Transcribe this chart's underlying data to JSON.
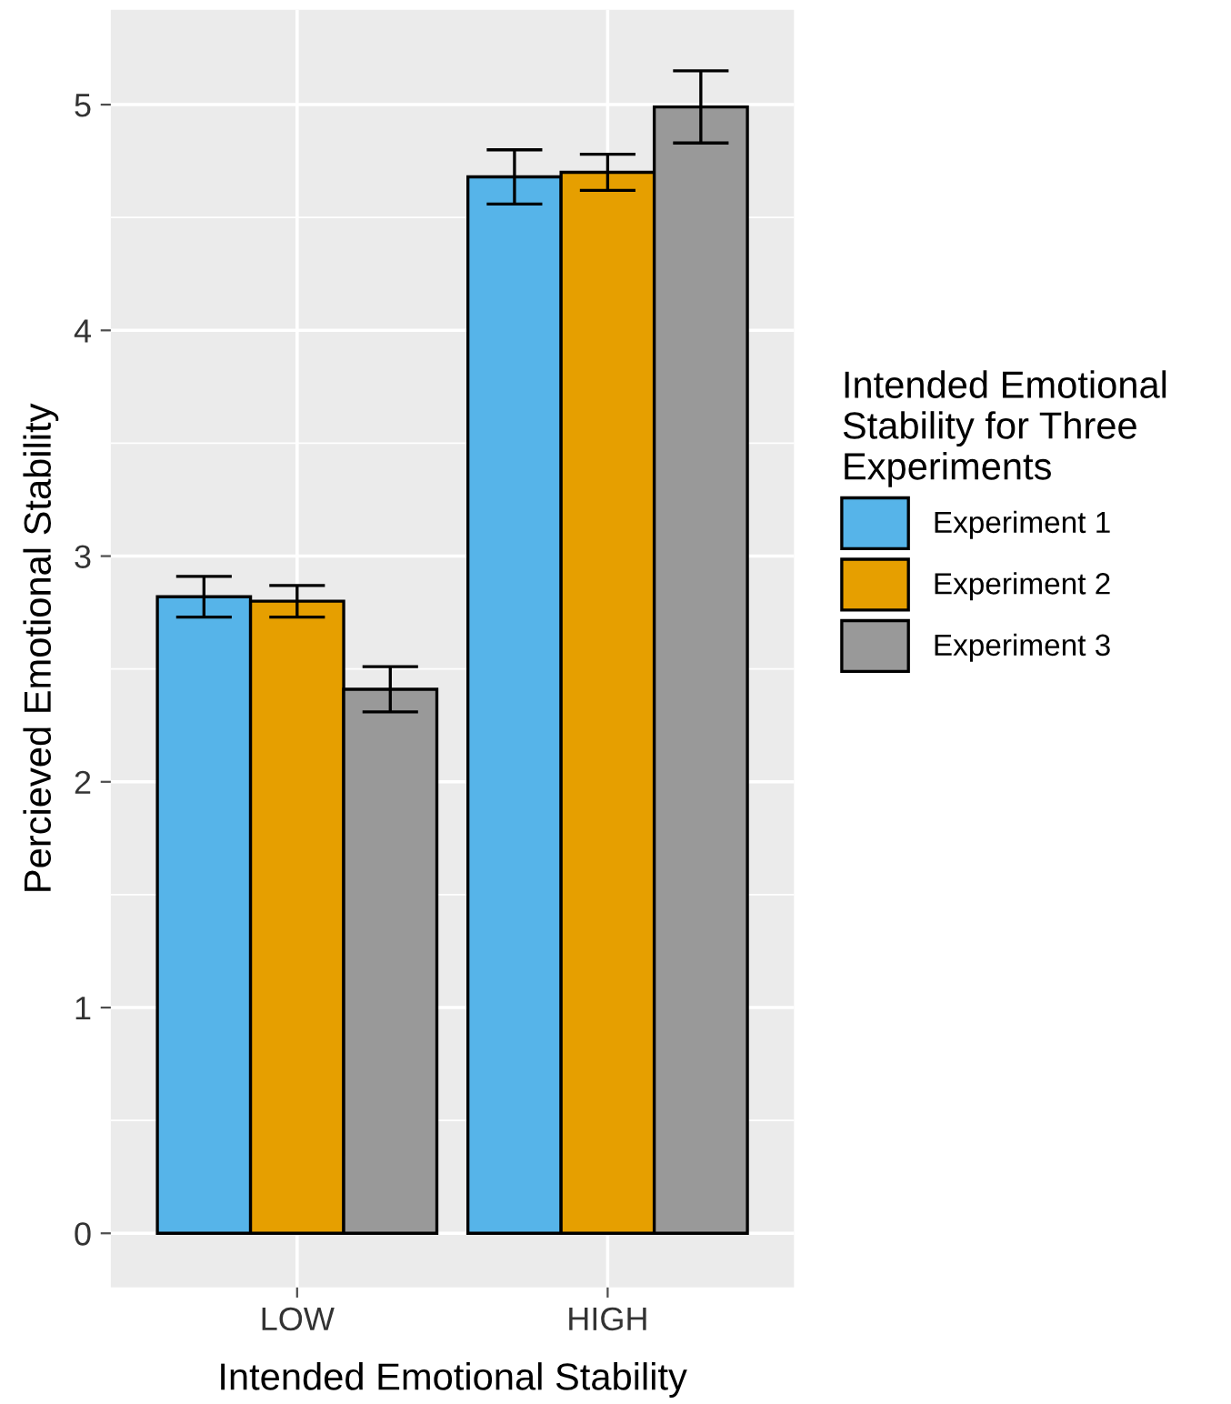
{
  "chart_data": {
    "type": "bar",
    "categories": [
      "LOW",
      "HIGH"
    ],
    "xlabel": "Intended Emotional Stability",
    "ylabel": "Percieved Emotional Stability",
    "legend_title": "Intended Emotional\nStability for Three\nExperiments",
    "series": [
      {
        "name": "Experiment 1",
        "color": "#56b4e9",
        "values": [
          2.82,
          4.68
        ],
        "errors": [
          0.09,
          0.12
        ]
      },
      {
        "name": "Experiment 2",
        "color": "#e69f00",
        "values": [
          2.8,
          4.7
        ],
        "errors": [
          0.07,
          0.08
        ]
      },
      {
        "name": "Experiment 3",
        "color": "#999999",
        "values": [
          2.41,
          4.99
        ],
        "errors": [
          0.1,
          0.16
        ]
      }
    ],
    "ylim": [
      -0.24,
      5.42
    ],
    "yticks": [
      0,
      1,
      2,
      3,
      4,
      5
    ],
    "grid": true,
    "legend": "right"
  }
}
